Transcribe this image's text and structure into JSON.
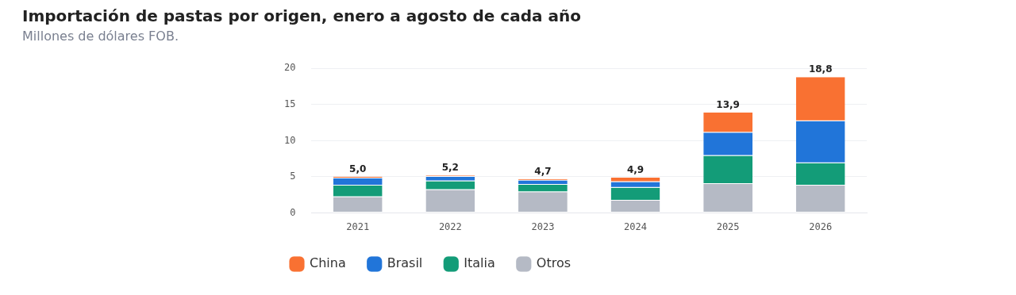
{
  "chart_data": {
    "type": "bar",
    "title": "Importación de pastas por origen, enero a agosto de cada año",
    "subtitle": "Millones de dólares FOB.",
    "categories": [
      "2021",
      "2022",
      "2023",
      "2024",
      "2025",
      "2026"
    ],
    "stacked": true,
    "series": [
      {
        "name": "Otros",
        "color": "#b5bac5",
        "values": [
          2.2,
          3.2,
          2.9,
          1.7,
          4.0,
          3.8
        ]
      },
      {
        "name": "Italia",
        "color": "#139c78",
        "values": [
          1.6,
          1.2,
          1.0,
          1.8,
          3.9,
          3.1
        ]
      },
      {
        "name": "Brasil",
        "color": "#2175d9",
        "values": [
          1.0,
          0.6,
          0.6,
          0.8,
          3.2,
          5.8
        ]
      },
      {
        "name": "China",
        "color": "#f97132",
        "values": [
          0.2,
          0.2,
          0.2,
          0.6,
          2.8,
          6.1
        ]
      }
    ],
    "totals": [
      "5,0",
      "5,2",
      "4,7",
      "4,9",
      "13,9",
      "18,8"
    ],
    "ylim": [
      0,
      20
    ],
    "yticks": [
      0,
      5,
      10,
      15,
      20
    ],
    "grid": "y",
    "legend": "bottom left"
  }
}
